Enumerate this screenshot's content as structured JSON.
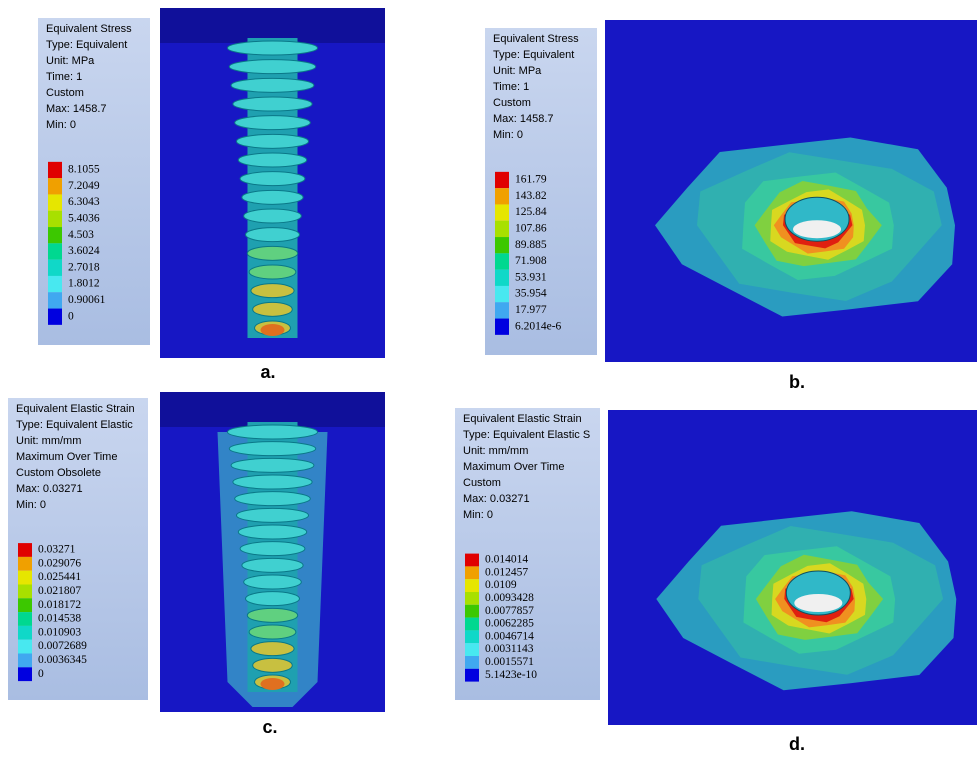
{
  "panels": [
    {
      "label": "a.",
      "legend": {
        "header": [
          "Equivalent Stress",
          "Type: Equivalent",
          "Unit: MPa",
          "Time: 1",
          "Custom",
          "Max: 1458.7",
          "Min: 0"
        ],
        "values": [
          "8.1055",
          "7.2049",
          "6.3043",
          "5.4036",
          "4.503",
          "3.6024",
          "2.7018",
          "1.8012",
          "0.90061",
          "0"
        ]
      }
    },
    {
      "label": "b.",
      "legend": {
        "header": [
          "Equivalent Stress",
          "Type: Equivalent",
          "Unit: MPa",
          "Time: 1",
          "Custom",
          "Max: 1458.7",
          "Min: 0"
        ],
        "values": [
          "161.79",
          "143.82",
          "125.84",
          "107.86",
          "89.885",
          "71.908",
          "53.931",
          "35.954",
          "17.977",
          "6.2014e-6"
        ]
      }
    },
    {
      "label": "c.",
      "legend": {
        "header": [
          "Equivalent Elastic Strain",
          "Type: Equivalent Elastic",
          "Unit: mm/mm",
          "Maximum Over Time",
          "Custom Obsolete",
          "Max: 0.03271",
          "Min: 0"
        ],
        "values": [
          "0.03271",
          "0.029076",
          "0.025441",
          "0.021807",
          "0.018172",
          "0.014538",
          "0.010903",
          "0.0072689",
          "0.0036345",
          "0"
        ]
      }
    },
    {
      "label": "d.",
      "legend": {
        "header": [
          "Equivalent Elastic Strain",
          "Type: Equivalent Elastic S",
          "Unit: mm/mm",
          "Maximum Over Time",
          "Custom",
          "Max: 0.03271",
          "Min: 0"
        ],
        "values": [
          "0.014014",
          "0.012457",
          "0.0109",
          "0.0093428",
          "0.0077857",
          "0.0062285",
          "0.0046714",
          "0.0031143",
          "0.0015571",
          "5.1423e-10"
        ]
      }
    }
  ]
}
